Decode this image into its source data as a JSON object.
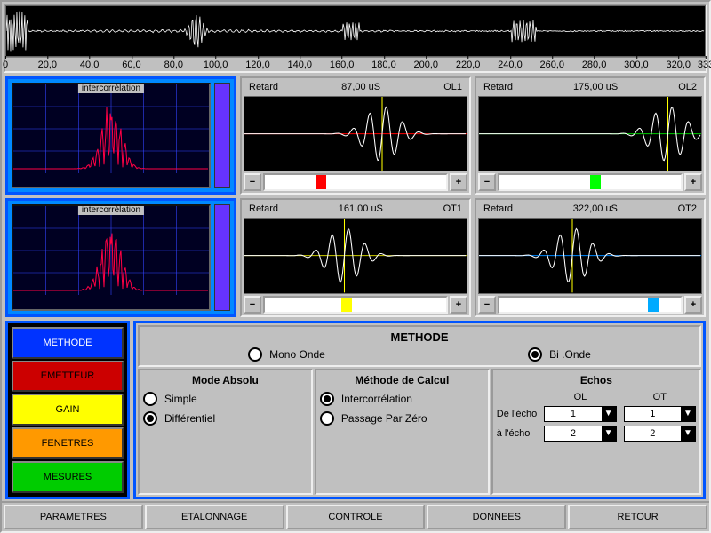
{
  "top_waveform": {
    "background": "#000000",
    "wave_color": "#ffffff",
    "ticks": [
      "0",
      "20,0",
      "40,0",
      "60,0",
      "80,0",
      "100,0",
      "120,0",
      "140,0",
      "160,0",
      "180,0",
      "200,0",
      "220,0",
      "240,0",
      "260,0",
      "280,0",
      "300,0",
      "320,0",
      "333"
    ],
    "tick_max": 333
  },
  "scopes": {
    "ol1": {
      "label": "Retard",
      "value": "87,00",
      "unit": "uS",
      "name": "OL1",
      "hline_color": "#ff0000",
      "cursor_color": "#ffff00",
      "cursor_pos": 0.62,
      "slider_color": "#ff0000",
      "slider_pos": 0.28
    },
    "ol2": {
      "label": "Retard",
      "value": "175,00",
      "unit": "uS",
      "name": "OL2",
      "hline_color": "#00cc00",
      "cursor_color": "#ffff00",
      "cursor_pos": 0.85,
      "slider_color": "#00ff00",
      "slider_pos": 0.5
    },
    "ot1": {
      "label": "Retard",
      "value": "161,00",
      "unit": "uS",
      "name": "OT1",
      "hline_color": "#cccc00",
      "cursor_color": "#ffff00",
      "cursor_pos": 0.45,
      "slider_color": "#ffff00",
      "slider_pos": 0.42
    },
    "ot2": {
      "label": "Retard",
      "value": "322,00",
      "unit": "uS",
      "name": "OT2",
      "hline_color": "#0088ff",
      "cursor_color": "#ffff00",
      "cursor_pos": 0.42,
      "slider_color": "#00aaff",
      "slider_pos": 0.82
    }
  },
  "correlation": {
    "title": "intercorrélation",
    "grid_color": "#3344ff",
    "wave_color": "#ff0044",
    "side_color": "#6633ff",
    "bg": "#000022"
  },
  "side_menu": {
    "items": [
      {
        "label": "METHODE",
        "bg": "#0033ff",
        "fg": "#ffffff"
      },
      {
        "label": "EMETTEUR",
        "bg": "#cc0000",
        "fg": "#000000"
      },
      {
        "label": "GAIN",
        "bg": "#ffff00",
        "fg": "#000000"
      },
      {
        "label": "FENETRES",
        "bg": "#ff9900",
        "fg": "#000000"
      },
      {
        "label": "MESURES",
        "bg": "#00cc00",
        "fg": "#000000"
      }
    ]
  },
  "methode": {
    "title": "METHODE",
    "wave_modes": {
      "mono": "Mono Onde",
      "bi": "Bi .Onde",
      "selected": "bi"
    },
    "mode_absolu": {
      "title": "Mode Absolu",
      "simple": "Simple",
      "diff": "Différentiel",
      "selected": "diff"
    },
    "calcul": {
      "title": "Méthode de Calcul",
      "inter": "Intercorrélation",
      "zero": "Passage Par Zéro",
      "selected": "inter"
    },
    "echos": {
      "title": "Echos",
      "col1": "OL",
      "col2": "OT",
      "row1": "De l'écho",
      "row2": "à l'écho",
      "val_ol_de": "1",
      "val_ot_de": "1",
      "val_ol_a": "2",
      "val_ot_a": "2"
    }
  },
  "bottom": [
    "PARAMETRES",
    "ETALONNAGE",
    "CONTROLE",
    "DONNEES",
    "RETOUR"
  ]
}
